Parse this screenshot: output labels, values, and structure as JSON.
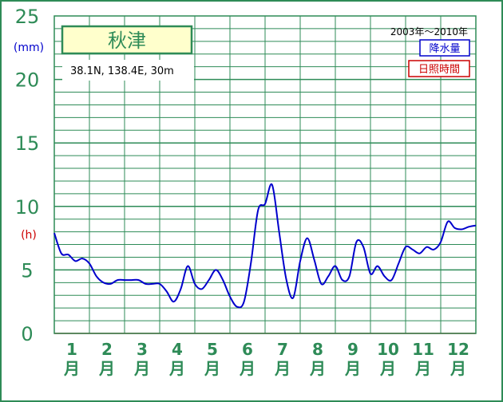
{
  "chart_data": {
    "type": "line",
    "title": "秋津",
    "location_info": "38.1N,  138.4E,  30m",
    "period": "2003年～2010年",
    "legend": [
      {
        "label": "降水量",
        "color": "#0000cc"
      },
      {
        "label": "日照時間",
        "color": "#cc0000"
      }
    ],
    "y_axis": {
      "ticks": [
        "0",
        "5",
        "10",
        "15",
        "20",
        "25"
      ],
      "unit_precip": "(mm)",
      "unit_sun": "(h)",
      "ylim": [
        0,
        25
      ]
    },
    "x_axis": {
      "months": [
        "1",
        "2",
        "3",
        "4",
        "5",
        "6",
        "7",
        "8",
        "9",
        "10",
        "11",
        "12"
      ],
      "month_suffix": "月",
      "xlim": [
        0,
        12
      ]
    },
    "grid": true,
    "legend_position": "top-right",
    "colors": {
      "frame": "#2e8b57",
      "grid": "#2e8b57",
      "tick_text": "#2e8b57",
      "title_bg": "#ffffcc",
      "series_line": "#0000cc"
    },
    "series": [
      {
        "name": "降水量",
        "x": [
          0,
          0.2,
          0.4,
          0.6,
          0.8,
          1.0,
          1.2,
          1.4,
          1.6,
          1.8,
          2.0,
          2.2,
          2.4,
          2.6,
          2.8,
          3.0,
          3.2,
          3.4,
          3.6,
          3.8,
          4.0,
          4.2,
          4.4,
          4.6,
          4.8,
          5.0,
          5.2,
          5.4,
          5.6,
          5.8,
          6.0,
          6.2,
          6.4,
          6.6,
          6.8,
          7.0,
          7.2,
          7.4,
          7.6,
          7.8,
          8.0,
          8.2,
          8.4,
          8.6,
          8.8,
          9.0,
          9.2,
          9.4,
          9.6,
          9.8,
          10.0,
          10.2,
          10.4,
          10.6,
          10.8,
          11.0,
          11.2,
          11.4,
          11.6,
          11.8,
          12.0
        ],
        "y": [
          7.9,
          6.3,
          6.2,
          5.7,
          5.9,
          5.5,
          4.5,
          4.0,
          3.9,
          4.2,
          4.2,
          4.2,
          4.2,
          3.9,
          3.9,
          3.9,
          3.3,
          2.5,
          3.5,
          5.3,
          3.9,
          3.5,
          4.2,
          5.0,
          4.2,
          2.9,
          2.1,
          2.5,
          5.6,
          9.7,
          10.2,
          11.7,
          8.0,
          4.3,
          2.8,
          5.7,
          7.5,
          5.8,
          3.9,
          4.5,
          5.3,
          4.2,
          4.5,
          7.2,
          6.8,
          4.7,
          5.3,
          4.5,
          4.2,
          5.5,
          6.8,
          6.6,
          6.3,
          6.8,
          6.6,
          7.2,
          8.8,
          8.3,
          8.2,
          8.4,
          8.5
        ]
      }
    ]
  }
}
